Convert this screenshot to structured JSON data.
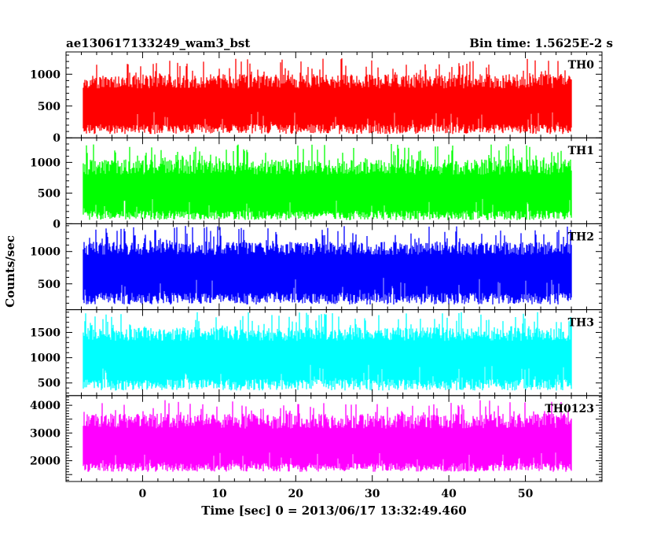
{
  "chart_data": {
    "type": "line",
    "title": "ae130617133249_wam3_bst",
    "subtitle": "Bin time: 1.5625E-2 s",
    "xlabel": "Time [sec] 0 = 2013/06/17 13:32:49.460",
    "ylabel": "Counts/sec",
    "xlim": [
      -10,
      60
    ],
    "x_ticks": [
      0,
      10,
      20,
      30,
      40,
      50
    ],
    "data_x_range": [
      -7.8,
      56.0
    ],
    "grid": false,
    "panels": [
      {
        "name": "TH0",
        "color": "#ff0000",
        "ylim": [
          0,
          1350
        ],
        "y_ticks": [
          0,
          500,
          1000
        ],
        "low": 60,
        "high": 1000,
        "spike": 1250,
        "mean": 500
      },
      {
        "name": "TH1",
        "color": "#00ff00",
        "ylim": [
          0,
          1400
        ],
        "y_ticks": [
          0,
          500,
          1000
        ],
        "low": 60,
        "high": 1050,
        "spike": 1300,
        "mean": 500
      },
      {
        "name": "TH2",
        "color": "#0000ff",
        "ylim": [
          100,
          1430
        ],
        "y_ticks": [
          500,
          1000
        ],
        "low": 180,
        "high": 1150,
        "spike": 1400,
        "mean": 700
      },
      {
        "name": "TH3",
        "color": "#00ffff",
        "ylim": [
          250,
          1950
        ],
        "y_ticks": [
          500,
          1000,
          1500
        ],
        "low": 350,
        "high": 1600,
        "spike": 1900,
        "mean": 1000
      },
      {
        "name": "TH0123",
        "color": "#ff00ff",
        "ylim": [
          1250,
          4350
        ],
        "y_ticks": [
          2000,
          3000,
          4000
        ],
        "low": 1600,
        "high": 3700,
        "spike": 4200,
        "mean": 2500
      }
    ]
  }
}
